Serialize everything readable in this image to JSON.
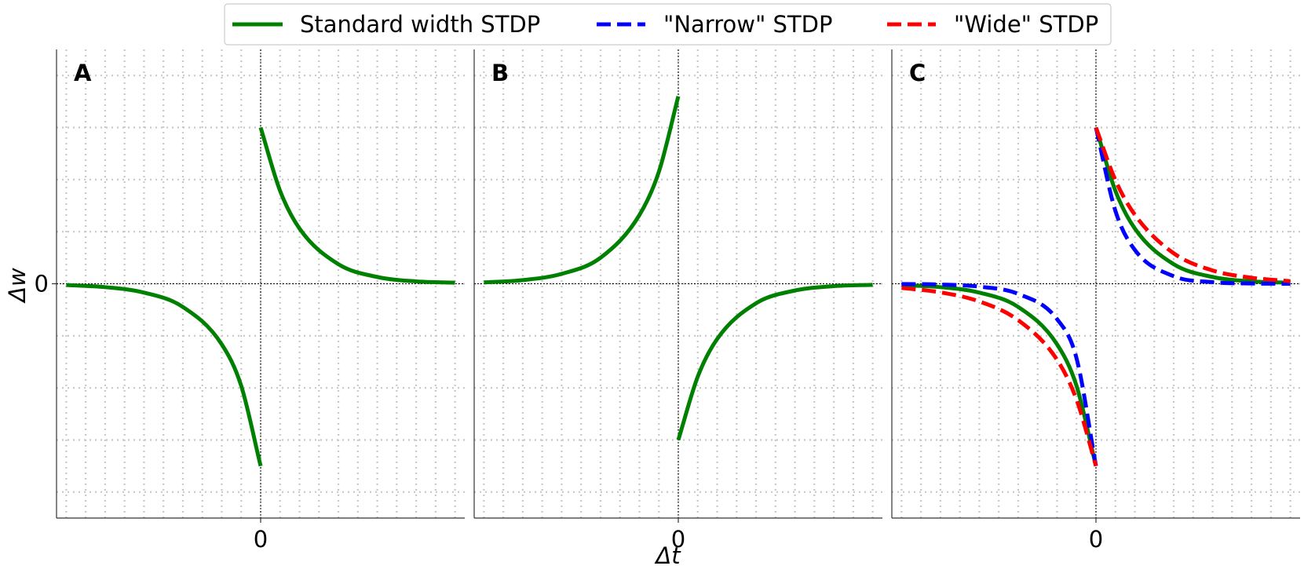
{
  "legend": {
    "items": [
      {
        "label": "Standard width STDP",
        "color": "#008000",
        "dash": "solid"
      },
      {
        "label": "\"Narrow\" STDP",
        "color": "#0000ff",
        "dash": "dashed"
      },
      {
        "label": "\"Wide\" STDP",
        "color": "#ff0000",
        "dash": "dashed"
      }
    ]
  },
  "axes": {
    "xlabel": "Δt",
    "ylabel": "Δw",
    "xtick": "0",
    "ytick": "0"
  },
  "chart_data": [
    {
      "type": "line",
      "panel": "A",
      "xlim": [
        -1.05,
        1.05
      ],
      "ylim": [
        -0.9,
        0.9
      ],
      "grid": true,
      "x_ticks": [
        "0"
      ],
      "y_ticks": [
        "0"
      ],
      "series": [
        {
          "name": "Standard width STDP",
          "color": "#008000",
          "dash": "solid",
          "x": [
            -1,
            -0.8,
            -0.6,
            -0.4,
            -0.2,
            -0.1,
            0
          ],
          "y": [
            -0.005,
            -0.013,
            -0.034,
            -0.089,
            -0.233,
            -0.392,
            -0.7
          ],
          "x2": [
            0,
            0.1,
            0.2,
            0.4,
            0.6,
            0.8,
            1
          ],
          "y2": [
            0.6,
            0.357,
            0.212,
            0.075,
            0.026,
            0.009,
            0.004
          ]
        }
      ]
    },
    {
      "type": "line",
      "panel": "B",
      "xlim": [
        -1.05,
        1.05
      ],
      "ylim": [
        -0.9,
        0.9
      ],
      "grid": true,
      "x_ticks": [
        "0"
      ],
      "y_ticks": [],
      "series": [
        {
          "name": "Standard width STDP",
          "color": "#008000",
          "dash": "solid",
          "x": [
            -1,
            -0.8,
            -0.6,
            -0.4,
            -0.2,
            -0.1,
            0
          ],
          "y": [
            0.005,
            0.014,
            0.038,
            0.1,
            0.264,
            0.43,
            0.72
          ],
          "x2": [
            0,
            0.1,
            0.2,
            0.4,
            0.6,
            0.8,
            1
          ],
          "y2": [
            -0.6,
            -0.357,
            -0.212,
            -0.075,
            -0.026,
            -0.009,
            -0.004
          ]
        }
      ]
    },
    {
      "type": "line",
      "panel": "C",
      "xlim": [
        -1.05,
        1.05
      ],
      "ylim": [
        -0.9,
        0.9
      ],
      "grid": true,
      "x_ticks": [
        "0"
      ],
      "y_ticks": [],
      "series": [
        {
          "name": "Standard width STDP",
          "color": "#008000",
          "dash": "solid",
          "x": [
            -1,
            -0.8,
            -0.6,
            -0.4,
            -0.2,
            -0.1,
            0
          ],
          "y": [
            -0.005,
            -0.013,
            -0.034,
            -0.089,
            -0.233,
            -0.392,
            -0.7
          ],
          "x2": [
            0,
            0.1,
            0.2,
            0.4,
            0.6,
            0.8,
            1
          ],
          "y2": [
            0.6,
            0.357,
            0.212,
            0.075,
            0.026,
            0.009,
            0.004
          ]
        },
        {
          "name": "\"Narrow\" STDP",
          "color": "#0000ff",
          "dash": "dashed",
          "x": [
            -1,
            -0.8,
            -0.6,
            -0.4,
            -0.2,
            -0.1,
            0
          ],
          "y": [
            -0.001,
            -0.003,
            -0.011,
            -0.039,
            -0.136,
            -0.286,
            -0.7
          ],
          "x2": [
            0,
            0.1,
            0.2,
            0.4,
            0.6,
            0.8,
            1
          ],
          "y2": [
            0.6,
            0.28,
            0.13,
            0.029,
            0.006,
            0.001,
            0.0
          ]
        },
        {
          "name": "\"Wide\" STDP",
          "color": "#ff0000",
          "dash": "dashed",
          "x": [
            -1,
            -0.8,
            -0.6,
            -0.4,
            -0.2,
            -0.1,
            0
          ],
          "y": [
            -0.016,
            -0.033,
            -0.068,
            -0.14,
            -0.292,
            -0.445,
            -0.7
          ],
          "x2": [
            0,
            0.1,
            0.2,
            0.4,
            0.6,
            0.8,
            1
          ],
          "y2": [
            0.6,
            0.398,
            0.265,
            0.117,
            0.051,
            0.023,
            0.01
          ]
        }
      ]
    }
  ]
}
